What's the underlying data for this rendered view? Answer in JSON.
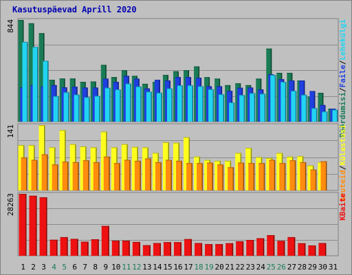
{
  "title": "Kasutuspäevad Aprill 2020",
  "colors": {
    "hits": "#1a7c56",
    "files": "#1f3fe0",
    "pages": "#22d4f2",
    "visits": "#ffff1f",
    "sites": "#ff8c0f",
    "kbytes": "#ee1111",
    "weekend_label": "#1a7c56",
    "weekday_label": "#000000"
  },
  "chart_data": [
    {
      "type": "bar",
      "panel": "top",
      "y_max_label": "844",
      "ylim": [
        0,
        844
      ],
      "categories": [
        "1",
        "2",
        "3",
        "4",
        "5",
        "6",
        "7",
        "8",
        "9",
        "10",
        "11",
        "12",
        "13",
        "14",
        "15",
        "16",
        "17",
        "18",
        "19",
        "20",
        "21",
        "22",
        "23",
        "24",
        "25",
        "26",
        "27",
        "28",
        "29",
        "30",
        "31"
      ],
      "weekend_days": [
        "4",
        "5",
        "11",
        "12",
        "18",
        "19",
        "25",
        "26"
      ],
      "legend": [
        {
          "key": "hits",
          "label": "Pöördumisi"
        },
        {
          "key": "sep1",
          "label": "/"
        },
        {
          "key": "files",
          "label": "Faile"
        },
        {
          "key": "sep2",
          "label": "/"
        },
        {
          "key": "pages",
          "label": "Lehekülgi"
        }
      ],
      "series": [
        {
          "name": "Pöördumisi",
          "color_key": "hits",
          "values": [
            844,
            816,
            734,
            347,
            358,
            358,
            330,
            333,
            471,
            370,
            427,
            380,
            314,
            329,
            388,
            418,
            427,
            458,
            369,
            357,
            303,
            318,
            303,
            357,
            606,
            405,
            405,
            341,
            208,
            239,
            108
          ]
        },
        {
          "name": "Faile",
          "color_key": "files",
          "values": [
            285,
            303,
            294,
            303,
            285,
            290,
            283,
            283,
            357,
            330,
            380,
            357,
            276,
            347,
            342,
            370,
            370,
            365,
            294,
            294,
            256,
            281,
            283,
            267,
            392,
            352,
            342,
            341,
            254,
            138,
            108
          ]
        },
        {
          "name": "Lehekülgi",
          "color_key": "pages",
          "values": [
            662,
            620,
            505,
            212,
            244,
            225,
            203,
            214,
            281,
            267,
            316,
            292,
            249,
            240,
            276,
            301,
            301,
            294,
            269,
            227,
            160,
            221,
            237,
            232,
            387,
            330,
            256,
            223,
            112,
            84,
            99
          ]
        }
      ]
    },
    {
      "type": "bar",
      "panel": "middle",
      "y_max_label": "141",
      "ylim": [
        0,
        141
      ],
      "legend": [
        {
          "key": "sites",
          "label": "Aruteid"
        },
        {
          "key": "sep3",
          "label": "/"
        },
        {
          "key": "visits",
          "label": "Külastusi"
        }
      ],
      "series": [
        {
          "name": "Külastusi",
          "color_key": "visits",
          "values": [
            98,
            98,
            141,
            93,
            130,
            100,
            95,
            93,
            127,
            93,
            100,
            94,
            93,
            81,
            104,
            103,
            115,
            73,
            66,
            64,
            64,
            81,
            92,
            72,
            70,
            81,
            73,
            74,
            54,
            61,
            0
          ]
        },
        {
          "name": "Aruteid",
          "color_key": "sites",
          "values": [
            71,
            66,
            78,
            56,
            62,
            61,
            65,
            61,
            73,
            59,
            66,
            64,
            69,
            61,
            66,
            64,
            59,
            59,
            60,
            56,
            50,
            60,
            59,
            59,
            66,
            59,
            65,
            61,
            45,
            63,
            0
          ]
        }
      ]
    },
    {
      "type": "bar",
      "panel": "bottom",
      "y_max_label": "28263",
      "ylim": [
        0,
        28263
      ],
      "legend": [
        {
          "key": "kbytes",
          "label": "KBaite"
        }
      ],
      "series": [
        {
          "name": "KBaite",
          "color_key": "kbytes",
          "values": [
            28263,
            27400,
            26700,
            7300,
            8500,
            7700,
            6400,
            7500,
            13600,
            6900,
            6900,
            6300,
            4800,
            5800,
            6200,
            6200,
            7600,
            5800,
            5300,
            5300,
            5700,
            6600,
            7200,
            8000,
            9400,
            6800,
            8500,
            5700,
            4700,
            5800,
            0
          ]
        }
      ]
    }
  ]
}
